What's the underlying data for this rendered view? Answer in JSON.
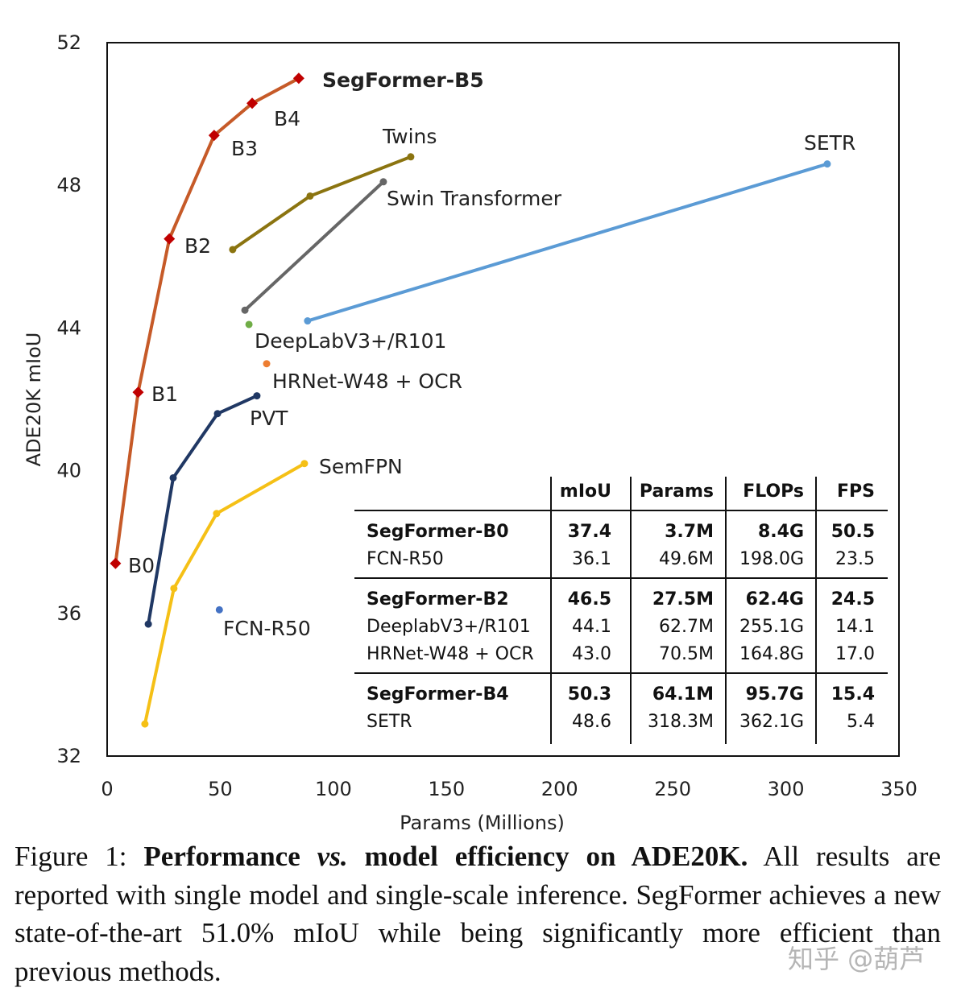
{
  "chart_data": {
    "type": "line",
    "xlabel": "Params (Millions)",
    "ylabel": "ADE20K mIoU",
    "xlim": [
      0,
      350
    ],
    "ylim": [
      32,
      52
    ],
    "xticks": [
      0,
      50,
      100,
      150,
      200,
      250,
      300,
      350
    ],
    "yticks": [
      32,
      36,
      40,
      44,
      48,
      52
    ],
    "grid": false,
    "series": [
      {
        "name": "SegFormer",
        "color": "#C65A28",
        "marker": "diamond",
        "marker_color": "#C00000",
        "x": [
          3.7,
          13.7,
          27.5,
          47.3,
          64.1,
          84.7
        ],
        "y": [
          37.4,
          42.2,
          46.5,
          49.4,
          50.3,
          51.0
        ],
        "point_labels": [
          "B0",
          "B1",
          "B2",
          "B3",
          "B4",
          "SegFormer-B5"
        ]
      },
      {
        "name": "Twins",
        "color": "#8B7410",
        "x": [
          55.5,
          89.7,
          134.2
        ],
        "y": [
          46.2,
          47.7,
          48.8
        ]
      },
      {
        "name": "Swin Transformer",
        "color": "#666666",
        "x": [
          60.9,
          122.1
        ],
        "y": [
          44.5,
          48.1
        ]
      },
      {
        "name": "SETR",
        "color": "#5B9BD5",
        "x": [
          88.6,
          318.3
        ],
        "y": [
          44.2,
          48.6
        ]
      },
      {
        "name": "DeepLabV3+/R101",
        "color": "#70AD47",
        "x": [
          62.7
        ],
        "y": [
          44.1
        ]
      },
      {
        "name": "HRNet-W48 + OCR",
        "color": "#ED7D31",
        "x": [
          70.5
        ],
        "y": [
          43.0
        ]
      },
      {
        "name": "PVT",
        "color": "#203864",
        "x": [
          18.2,
          29.2,
          48.8,
          66.2
        ],
        "y": [
          35.7,
          39.8,
          41.6,
          42.1
        ]
      },
      {
        "name": "SemFPN",
        "color": "#F5C016",
        "x": [
          16.7,
          29.5,
          48.4,
          87.2
        ],
        "y": [
          32.9,
          36.7,
          38.8,
          40.2
        ]
      },
      {
        "name": "FCN-R50",
        "color": "#4472C4",
        "x": [
          49.6
        ],
        "y": [
          36.1
        ]
      }
    ]
  },
  "table": {
    "header": [
      "",
      "mIoU",
      "Params",
      "FLOPs",
      "FPS"
    ],
    "groups": [
      [
        [
          "SegFormer-B0",
          "37.4",
          "3.7M",
          "8.4G",
          "50.5"
        ],
        [
          "FCN-R50",
          "36.1",
          "49.6M",
          "198.0G",
          "23.5"
        ]
      ],
      [
        [
          "SegFormer-B2",
          "46.5",
          "27.5M",
          "62.4G",
          "24.5"
        ],
        [
          "DeeplabV3+/R101",
          "44.1",
          "62.7M",
          "255.1G",
          "14.1"
        ],
        [
          "HRNet-W48 + OCR",
          "43.0",
          "70.5M",
          "164.8G",
          "17.0"
        ]
      ],
      [
        [
          "SegFormer-B4",
          "50.3",
          "64.1M",
          "95.7G",
          "15.4"
        ],
        [
          "SETR",
          "48.6",
          "318.3M",
          "362.1G",
          "5.4"
        ]
      ]
    ]
  },
  "caption": {
    "prefix": "Figure 1: ",
    "bold1": "Performance ",
    "italic": "vs.",
    "bold2": " model efficiency on ADE20K.",
    "rest": " All results are reported with single model and single-scale inference. SegFormer achieves a new state-of-the-art 51.0% mIoU while being significantly more efficient than previous methods."
  },
  "watermark": "知乎 @葫芦"
}
